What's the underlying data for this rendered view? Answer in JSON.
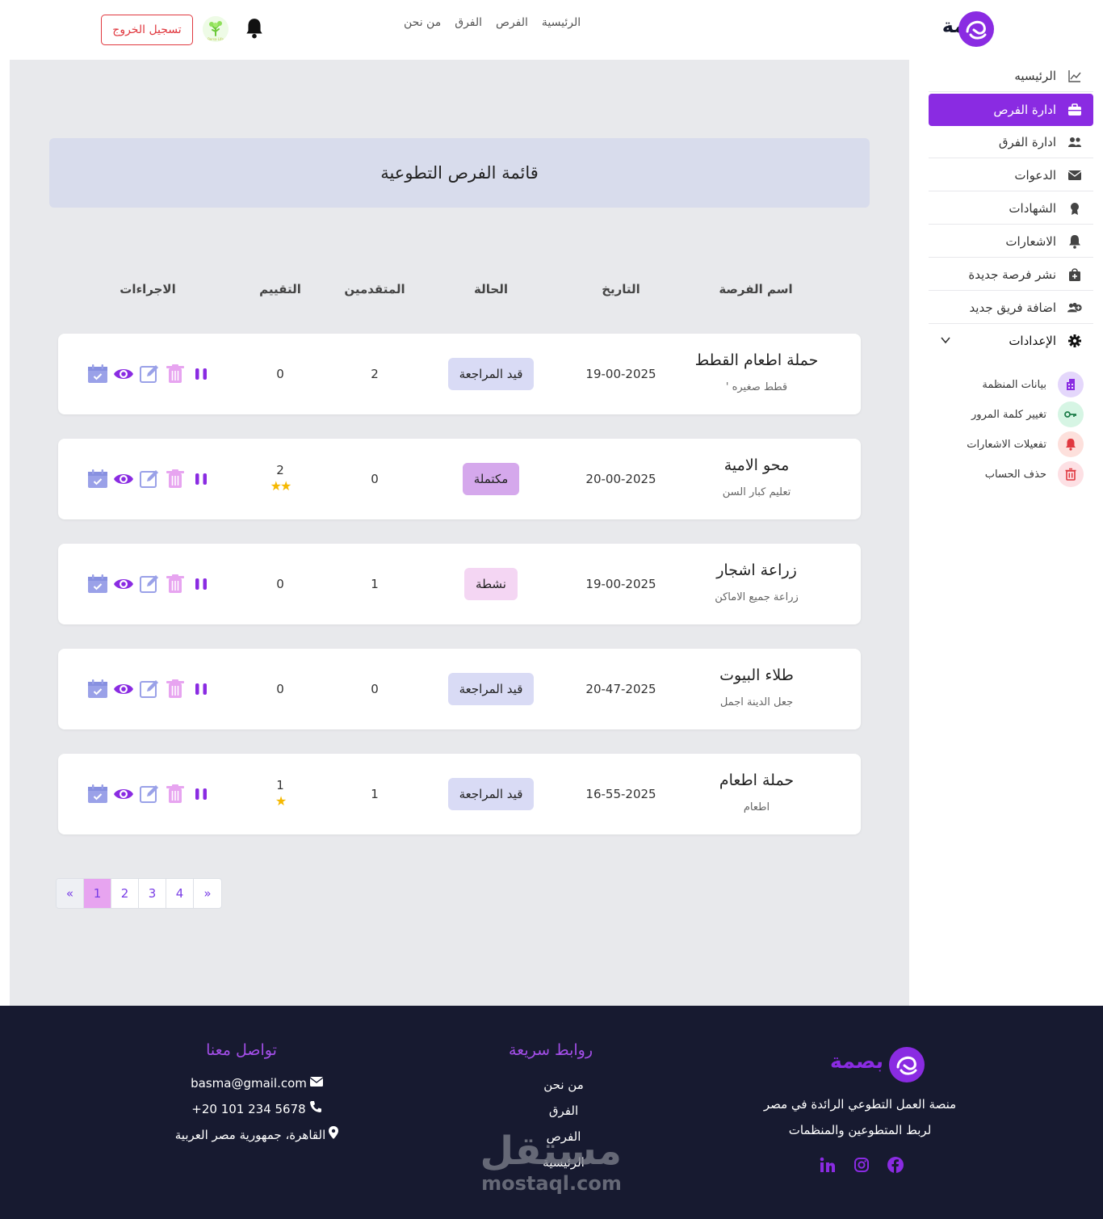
{
  "brand": {
    "name": "بصمة",
    "accent": "#8a2be2"
  },
  "topnav": {
    "items": [
      "الرئيسية",
      "الفرص",
      "الفرق",
      "من نحن"
    ],
    "logout_label": "تسجيل الخروج",
    "avatar_caption": "Bersa Life"
  },
  "page": {
    "title": "قائمة الفرص التطوعية"
  },
  "table": {
    "headers": {
      "name": "اسم الفرصة",
      "date": "التاريخ",
      "status": "الحالة",
      "applicants": "المتقدمين",
      "rating": "التقييم",
      "actions": "الاجراءات"
    },
    "rows": [
      {
        "title": "حملة اطعام القطط",
        "subtitle": "قطط صغيره '",
        "date": "19-00-2025",
        "status": "قيد المراجعة",
        "status_kind": "review",
        "applicants": "2",
        "rating": "0",
        "stars": ""
      },
      {
        "title": "محو الامية",
        "subtitle": "تعليم كبار السن",
        "date": "20-00-2025",
        "status": "مكتملة",
        "status_kind": "done",
        "applicants": "0",
        "rating": "2",
        "stars": "★★"
      },
      {
        "title": "زراعة اشجار",
        "subtitle": "زراعة جميع الاماكن",
        "date": "19-00-2025",
        "status": "نشطة",
        "status_kind": "active",
        "applicants": "1",
        "rating": "0",
        "stars": ""
      },
      {
        "title": "طلاء البيوت",
        "subtitle": "جعل الدينة اجمل",
        "date": "20-47-2025",
        "status": "قيد المراجعة",
        "status_kind": "review",
        "applicants": "0",
        "rating": "0",
        "stars": ""
      },
      {
        "title": "حملة اطعام",
        "subtitle": "اطعام",
        "date": "16-55-2025",
        "status": "قيد المراجعة",
        "status_kind": "review",
        "applicants": "1",
        "rating": "1",
        "stars": "★"
      }
    ],
    "action_icons": [
      "calendar-check-icon",
      "eye-icon",
      "edit-icon",
      "trash-icon",
      "pause-icon"
    ]
  },
  "pagination": {
    "prev": "«",
    "pages": [
      "1",
      "2",
      "3",
      "4"
    ],
    "current": "1",
    "next": "»"
  },
  "sidebar": {
    "items": [
      {
        "label": "الرئيسيه",
        "icon": "chart-line-icon"
      },
      {
        "label": "ادارة الفرص",
        "icon": "briefcase-icon",
        "active": true
      },
      {
        "label": "ادارة الفرق",
        "icon": "users-icon"
      },
      {
        "label": "الدعوات",
        "icon": "envelope-icon"
      },
      {
        "label": "الشهادات",
        "icon": "award-icon"
      },
      {
        "label": "الاشعارات",
        "icon": "bell-icon"
      },
      {
        "label": "نشر فرصة جديدة",
        "icon": "bag-plus-icon"
      },
      {
        "label": "اضافة فريق جديد",
        "icon": "users-plus-icon"
      }
    ],
    "settings_label": "الإعدادات",
    "settings_items": [
      {
        "label": "بيانات المنظمة",
        "icon": "building-icon",
        "bg": "#e4d7fb",
        "fg": "#8a2be2"
      },
      {
        "label": "تغيير كلمة المرور",
        "icon": "key-icon",
        "bg": "#d6f5e4",
        "fg": "#2c9b5e"
      },
      {
        "label": "تفعيلات الاشعارات",
        "icon": "bell-icon",
        "bg": "#fde0dc",
        "fg": "#e0383f"
      },
      {
        "label": "حذف الحساب",
        "icon": "trash-icon",
        "bg": "#fde0e4",
        "fg": "#e0383f"
      }
    ]
  },
  "footer": {
    "brand": "بصمة",
    "description_line1": "منصة العمل التطوعي الرائدة في مصر",
    "description_line2": "لربط المتطوعين والمنظمات",
    "links_title": "روابط سريعة",
    "links": [
      "من نحن",
      "الفرق",
      "الفرص",
      "الرئيسية"
    ],
    "contact_title": "تواصل معنا",
    "email": "basma@gmail.com",
    "phone": "+20 101 234 5678",
    "address": "القاهرة، جمهورية مصر العربية",
    "social": [
      "linkedin-icon",
      "instagram-icon",
      "facebook-icon"
    ]
  },
  "watermark": {
    "word": "مستقل",
    "url": "mostaql.com"
  }
}
